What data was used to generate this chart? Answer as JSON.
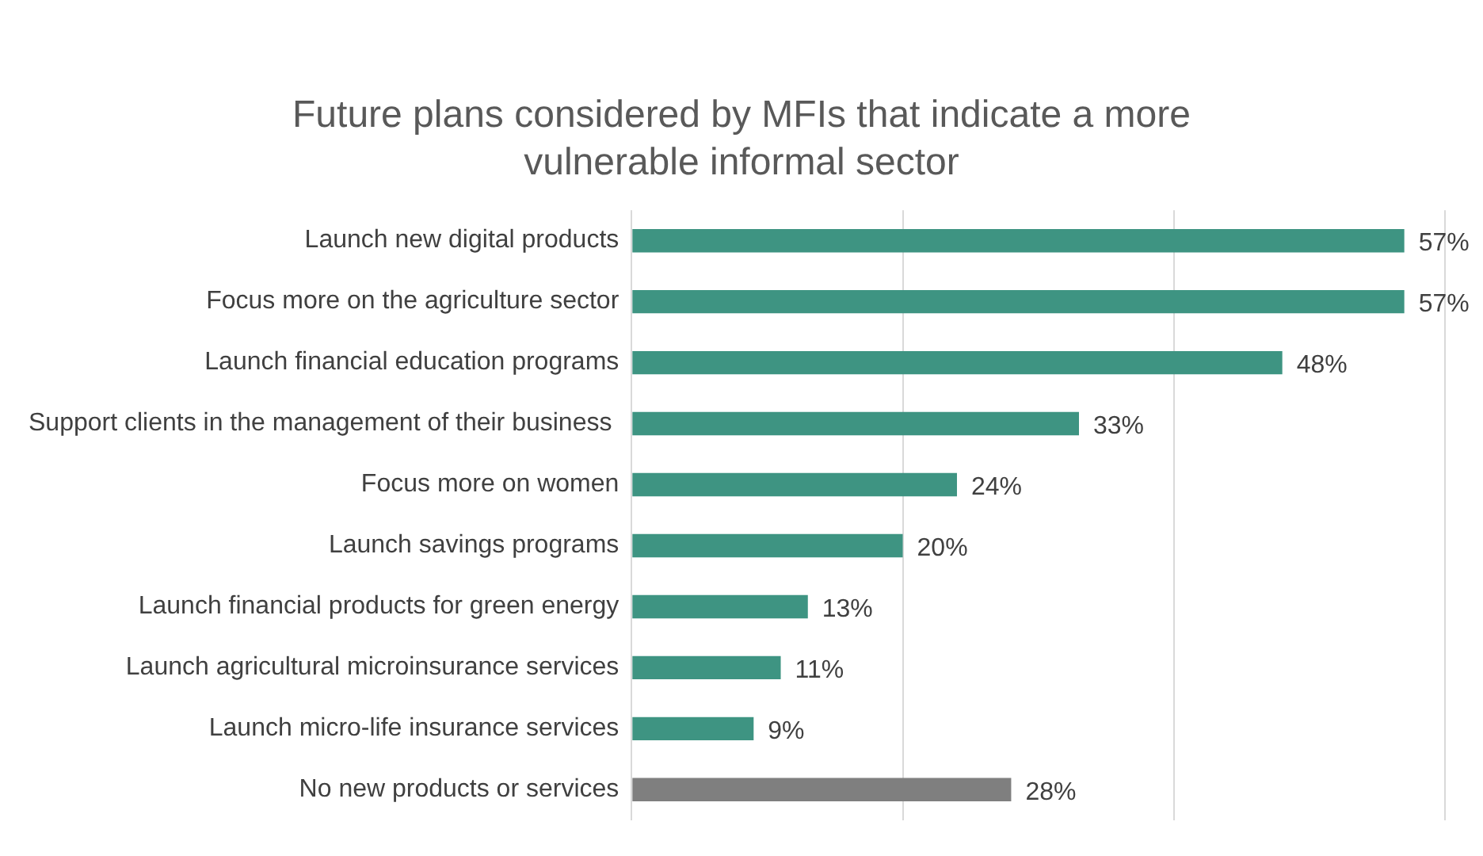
{
  "chart_data": {
    "type": "bar",
    "orientation": "horizontal",
    "title": "Future plans considered by MFIs that indicate a more vulnerable informal sector",
    "categories": [
      "Launch new digital products",
      "Focus more on the agriculture sector",
      "Launch financial education programs",
      "Support clients in the management of their business ",
      "Focus more on women",
      "Launch savings programs",
      "Launch financial products for green energy",
      "Launch agricultural microinsurance services",
      "Launch micro-life insurance services",
      "No new products or services"
    ],
    "values": [
      57,
      57,
      48,
      33,
      24,
      20,
      13,
      11,
      9,
      28
    ],
    "value_labels": [
      "57%",
      "57%",
      "48%",
      "33%",
      "24%",
      "20%",
      "13%",
      "11%",
      "9%",
      "28%"
    ],
    "colors": [
      "#3e9482",
      "#3e9482",
      "#3e9482",
      "#3e9482",
      "#3e9482",
      "#3e9482",
      "#3e9482",
      "#3e9482",
      "#3e9482",
      "#7f7f7f"
    ],
    "xlim": [
      0,
      60
    ],
    "xticks": [
      {
        "value": 0,
        "label": null
      },
      {
        "value": 20,
        "label": null
      },
      {
        "value": 40,
        "label": null
      },
      {
        "value": 60,
        "label": null
      }
    ],
    "grid": "x",
    "tick_labels": "y",
    "legend": false
  }
}
